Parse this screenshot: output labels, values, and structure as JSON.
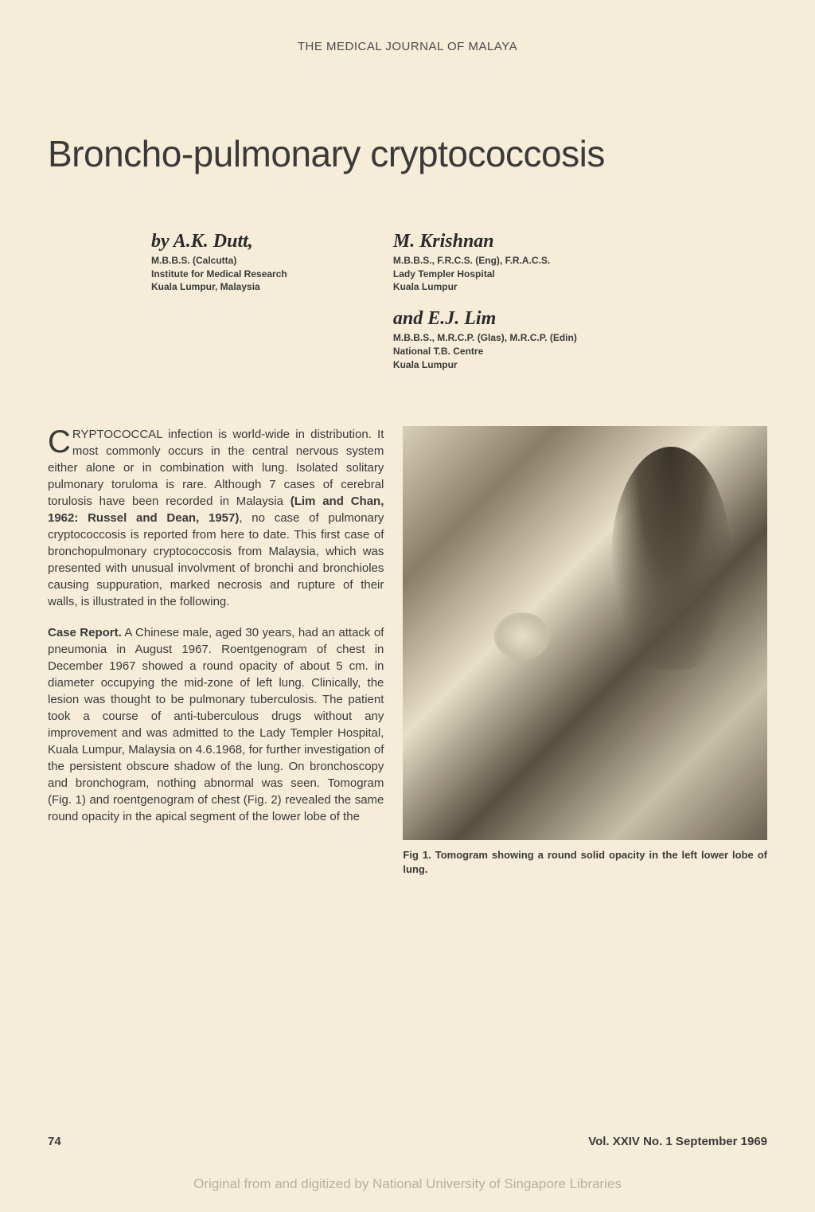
{
  "header": {
    "journal_name": "THE MEDICAL JOURNAL OF MALAYA"
  },
  "article": {
    "title": "Broncho-pulmonary cryptococcosis"
  },
  "authors": {
    "author1": {
      "byline": "by A.K. Dutt,",
      "credentials_line1": "M.B.B.S. (Calcutta)",
      "credentials_line2": "Institute for Medical Research",
      "credentials_line3": "Kuala Lumpur, Malaysia"
    },
    "author2": {
      "name": "M. Krishnan",
      "credentials_line1": "M.B.B.S., F.R.C.S. (Eng), F.R.A.C.S.",
      "credentials_line2": "Lady Templer Hospital",
      "credentials_line3": "Kuala Lumpur"
    },
    "author3": {
      "byline": "and E.J. Lim",
      "credentials_line1": "M.B.B.S., M.R.C.P. (Glas), M.R.C.P. (Edin)",
      "credentials_line2": "National T.B. Centre",
      "credentials_line3": "Kuala Lumpur"
    }
  },
  "body": {
    "drop_cap": "C",
    "para1_part1": "RYPTOCOCCAL infection is world-wide in distribution. It most commonly occurs in the central nervous system either alone or in combination with lung. Isolated solitary pulmonary toruloma is rare. Although 7 cases of cerebral torulosis have been recorded in Malaysia ",
    "para1_bold": "(Lim and Chan, 1962: Russel and Dean, 1957)",
    "para1_part2": ", no case of pulmonary cryptococcosis is reported from here to date. This first case of bronchopulmonary cryptococcosis from Malaysia, which was presented with unusual involvment of bronchi and bronchioles causing suppuration, marked necrosis and rupture of their walls, is illustrated in the following.",
    "para2_label": "Case Report.",
    "para2_text": " A Chinese male, aged 30 years, had an attack of pneumonia in August 1967. Roentgenogram of chest in December 1967 showed a round opacity of about 5 cm. in diameter occupying the mid-zone of left lung. Clinically, the lesion was thought to be pulmonary tuberculosis. The patient took a course of anti-tuberculous drugs without any improvement and was admitted to the Lady Templer Hospital, Kuala Lumpur, Malaysia on 4.6.1968, for further investigation of the persistent obscure shadow of the lung. On bronchoscopy and bronchogram, nothing abnormal was seen. Tomogram (Fig. 1) and roentgenogram of chest (Fig. 2) revealed the same round opacity in the apical segment of the lower lobe of the"
  },
  "figure": {
    "caption": "Fig 1. Tomogram showing a round solid opacity in the left lower lobe of lung."
  },
  "footer": {
    "page_number": "74",
    "volume_info": "Vol. XXIV No. 1 September 1969",
    "digitization": "Original from and digitized by National University of Singapore Libraries"
  }
}
